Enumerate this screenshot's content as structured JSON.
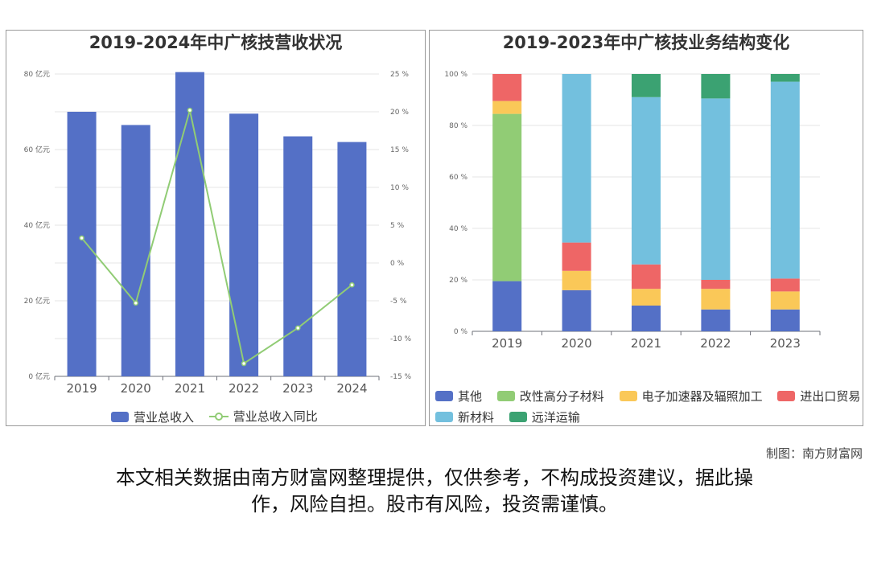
{
  "charts": {
    "left": {
      "title": "2019-2024年中广核技营收状况",
      "legend": [
        "营业总收入",
        "营业总收入同比"
      ],
      "left_ticks": [
        "0 亿元",
        "20 亿元",
        "40 亿元",
        "60 亿元",
        "80 亿元"
      ],
      "right_ticks": [
        "-15 %",
        "-10 %",
        "-5 %",
        "0 %",
        "5 %",
        "10 %",
        "15 %",
        "20 %",
        "25 %"
      ]
    },
    "right": {
      "title": "2019-2023年中广核技业务结构变化",
      "y_ticks": [
        "0 %",
        "20 %",
        "40 %",
        "60 %",
        "80 %",
        "100 %"
      ],
      "legend": [
        "其他",
        "改性高分子材料",
        "电子加速器及辐照加工",
        "进出口贸易",
        "新材料",
        "远洋运输"
      ]
    }
  },
  "chart_data": [
    {
      "type": "bar",
      "title": "2019-2024年中广核技营收状况",
      "categories": [
        "2019",
        "2020",
        "2021",
        "2022",
        "2023",
        "2024"
      ],
      "ylim": [
        0,
        80
      ],
      "y2lim": [
        -15,
        25
      ],
      "series": [
        {
          "name": "营业总收入",
          "type": "bar",
          "axis": "left",
          "color": "#5470c6",
          "values": [
            70,
            66.5,
            80.5,
            69.5,
            63.5,
            62
          ]
        },
        {
          "name": "营业总收入同比",
          "type": "line",
          "axis": "right",
          "color": "#91cc75",
          "values": [
            3.3,
            -5.3,
            20.2,
            -13.3,
            -8.6,
            -2.9
          ]
        }
      ],
      "grid": true,
      "legend_position": "bottom"
    },
    {
      "type": "bar",
      "stacked": true,
      "title": "2019-2023年中广核技业务结构变化",
      "categories": [
        "2019",
        "2020",
        "2021",
        "2022",
        "2023"
      ],
      "ylim": [
        0,
        100
      ],
      "series": [
        {
          "name": "其他",
          "color": "#5470c6",
          "values": [
            19.5,
            16,
            10,
            8.5,
            8.5
          ]
        },
        {
          "name": "改性高分子材料",
          "color": "#91cc75",
          "values": [
            65,
            0,
            0,
            0,
            0
          ]
        },
        {
          "name": "电子加速器及辐照加工",
          "color": "#fac858",
          "values": [
            5,
            7.5,
            6.5,
            8,
            7
          ]
        },
        {
          "name": "进出口贸易",
          "color": "#ee6666",
          "values": [
            10.5,
            11,
            9.5,
            3.5,
            5
          ]
        },
        {
          "name": "新材料",
          "color": "#73c0de",
          "values": [
            0,
            65.5,
            65,
            70.5,
            76.5
          ]
        },
        {
          "name": "远洋运输",
          "color": "#3ba272",
          "values": [
            0,
            0,
            9,
            9.5,
            3
          ]
        }
      ],
      "grid": true,
      "legend_position": "bottom"
    }
  ],
  "footer": {
    "credit": "制图：南方财富网",
    "disclaimer_line1": "本文相关数据由南方财富网整理提供，仅供参考，不构成投资建议，据此操",
    "disclaimer_line2": "作，风险自担。股市有风险，投资需谨慎。"
  }
}
